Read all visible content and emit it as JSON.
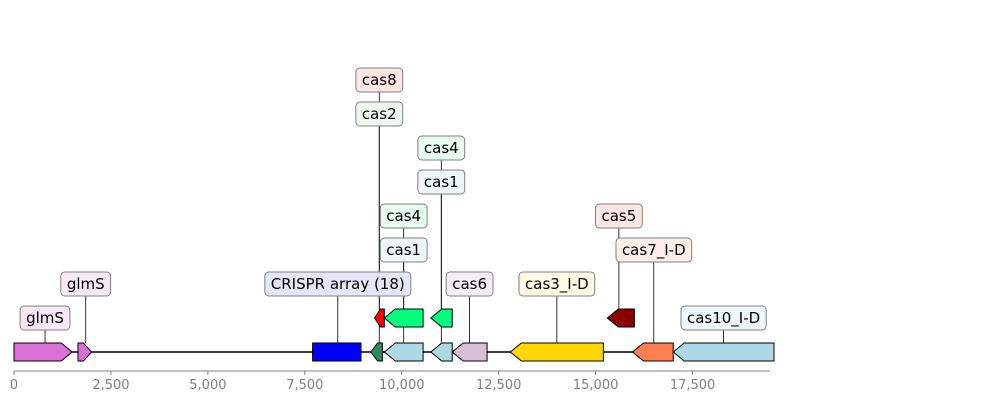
{
  "diagram": {
    "type": "gene-map",
    "x_axis": {
      "min": 0,
      "max": 19500,
      "ticks": [
        {
          "value": 0,
          "label": "0"
        },
        {
          "value": 2500,
          "label": "2,500"
        },
        {
          "value": 5000,
          "label": "5,000"
        },
        {
          "value": 7500,
          "label": "7,500"
        },
        {
          "value": 10000,
          "label": "10,000"
        },
        {
          "value": 12500,
          "label": "12,500"
        },
        {
          "value": 15000,
          "label": "15,000"
        },
        {
          "value": 17500,
          "label": "17,500"
        }
      ]
    },
    "backbone": {
      "start": 0,
      "end": 19500,
      "color": "#000000"
    },
    "features": [
      {
        "id": "glmS-1",
        "start": 0,
        "end": 1500,
        "strand": 1,
        "track": 0,
        "color": "#da70d6"
      },
      {
        "id": "glmS-2",
        "start": 1650,
        "end": 2000,
        "strand": 1,
        "track": 0,
        "color": "#da70d6"
      },
      {
        "id": "crispr",
        "start": 7700,
        "end": 8950,
        "strand": 0,
        "track": 0,
        "color": "#0000ff"
      },
      {
        "id": "cas-small-dg",
        "start": 9200,
        "end": 9500,
        "strand": -1,
        "track": 0,
        "color": "#2e8b57"
      },
      {
        "id": "cas8",
        "start": 9300,
        "end": 9550,
        "strand": -1,
        "track": 1,
        "color": "#ff0000"
      },
      {
        "id": "cas1-a",
        "start": 9550,
        "end": 10550,
        "strand": -1,
        "track": 0,
        "color": "#add8e6"
      },
      {
        "id": "cas4-a",
        "start": 9550,
        "end": 10550,
        "strand": -1,
        "track": 1,
        "color": "#00ff7f"
      },
      {
        "id": "cas1-b",
        "start": 10750,
        "end": 11300,
        "strand": -1,
        "track": 0,
        "color": "#add8e6"
      },
      {
        "id": "cas4-b",
        "start": 10750,
        "end": 11300,
        "strand": -1,
        "track": 1,
        "color": "#00ff7f"
      },
      {
        "id": "cas6",
        "start": 11300,
        "end": 12200,
        "strand": -1,
        "track": 0,
        "color": "#d8bfd8"
      },
      {
        "id": "cas3",
        "start": 12800,
        "end": 15200,
        "strand": -1,
        "track": 0,
        "color": "#ffd700"
      },
      {
        "id": "cas5",
        "start": 15300,
        "end": 16000,
        "strand": -1,
        "track": 1,
        "color": "#8b0000"
      },
      {
        "id": "cas7",
        "start": 15950,
        "end": 17000,
        "strand": -1,
        "track": 0,
        "color": "#ff7f50"
      },
      {
        "id": "cas10",
        "start": 17000,
        "end": 19600,
        "strand": -1,
        "track": 0,
        "color": "#add8e6"
      }
    ],
    "labels": [
      {
        "text": "glmS",
        "x": 800,
        "level": 0,
        "bg": "#f8e8f6",
        "anchor_track": 0
      },
      {
        "text": "glmS",
        "x": 1850,
        "level": 1,
        "bg": "#f8e8f6",
        "anchor_track": 0
      },
      {
        "text": "CRISPR array (18)",
        "x": 8350,
        "level": 1,
        "bg": "#e6e6fa",
        "anchor_track": 0
      },
      {
        "text": "cas2",
        "x": 9420,
        "level": 6,
        "bg": "#eef8ee",
        "anchor_track": 0
      },
      {
        "text": "cas8",
        "x": 9420,
        "level": 7,
        "bg": "#fde6e6",
        "anchor_track": 1
      },
      {
        "text": "cas1",
        "x": 10050,
        "level": 2,
        "bg": "#eef6f9",
        "anchor_track": 0
      },
      {
        "text": "cas4",
        "x": 10050,
        "level": 3,
        "bg": "#e8fbef",
        "anchor_track": 1
      },
      {
        "text": "cas1",
        "x": 11020,
        "level": 4,
        "bg": "#eef6f9",
        "anchor_track": 0
      },
      {
        "text": "cas4",
        "x": 11020,
        "level": 5,
        "bg": "#e8fbef",
        "anchor_track": 1
      },
      {
        "text": "cas6",
        "x": 11750,
        "level": 1,
        "bg": "#f6eef6",
        "anchor_track": 0
      },
      {
        "text": "cas3_I-D",
        "x": 14000,
        "level": 1,
        "bg": "#fefbe4",
        "anchor_track": 0
      },
      {
        "text": "cas5",
        "x": 15600,
        "level": 3,
        "bg": "#fde6e6",
        "anchor_track": 1
      },
      {
        "text": "cas7_I-D",
        "x": 16500,
        "level": 2,
        "bg": "#fdeee8",
        "anchor_track": 0
      },
      {
        "text": "cas10_I-D",
        "x": 18300,
        "level": 0,
        "bg": "#eef6f9",
        "anchor_track": 0
      }
    ]
  }
}
